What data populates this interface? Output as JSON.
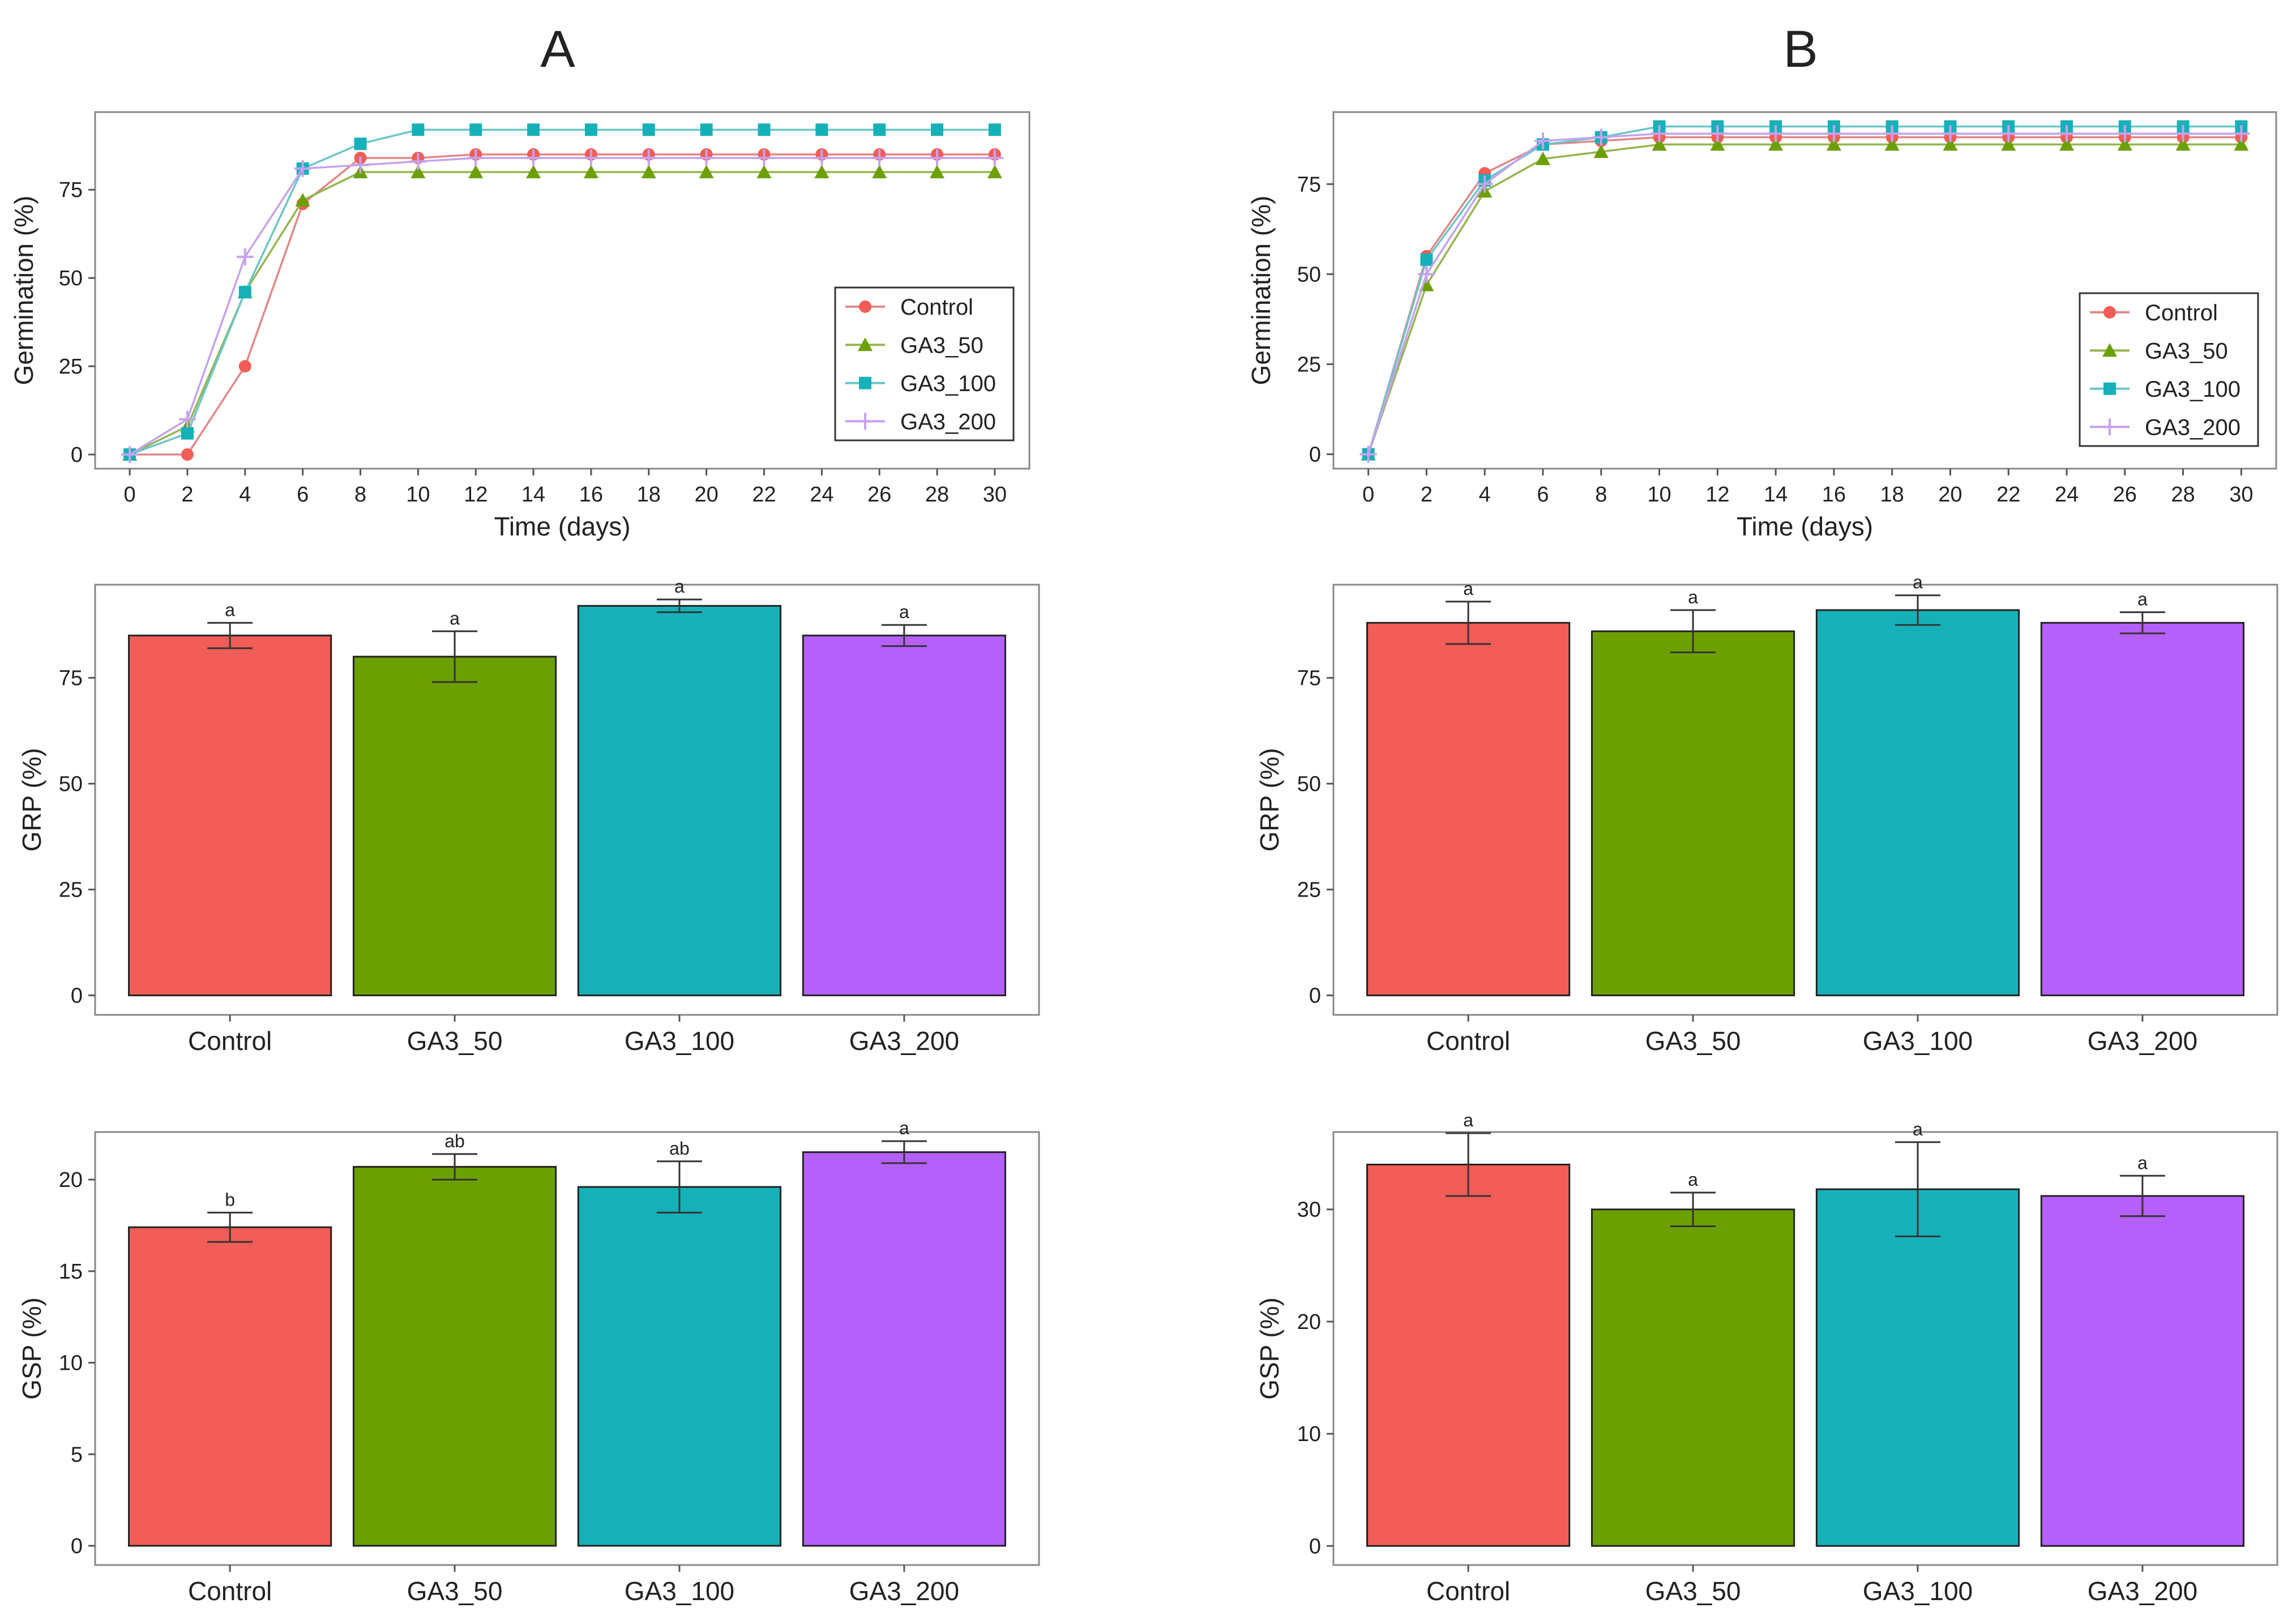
{
  "colors": {
    "Control": "#f25d57",
    "GA3_50": "#6ca000",
    "GA3_100": "#16b1b8",
    "GA3_200": "#b560fb"
  },
  "line_colors": {
    "Control": "#e08787",
    "GA3_50": "#94b550",
    "GA3_100": "#6cc5c9",
    "GA3_200": "#c6a2ee"
  },
  "chart_data": [
    {
      "id": "A-line",
      "panel": "A",
      "type": "line",
      "title": "A",
      "xlabel": "Time (days)",
      "ylabel": "Germination (%)",
      "x": [
        0,
        2,
        4,
        6,
        8,
        10,
        12,
        14,
        16,
        18,
        20,
        22,
        24,
        26,
        28,
        30
      ],
      "xlim": [
        -1.2,
        31.2
      ],
      "ylim": [
        -4,
        97
      ],
      "yticks": [
        0,
        25,
        50,
        75
      ],
      "legend_position": "right",
      "series": [
        {
          "name": "Control",
          "marker": "circle",
          "values": [
            0,
            0,
            25,
            71,
            84,
            84,
            85,
            85,
            85,
            85,
            85,
            85,
            85,
            85,
            85,
            85
          ]
        },
        {
          "name": "GA3_50",
          "marker": "triangle",
          "values": [
            0,
            8,
            46,
            72,
            80,
            80,
            80,
            80,
            80,
            80,
            80,
            80,
            80,
            80,
            80,
            80
          ]
        },
        {
          "name": "GA3_100",
          "marker": "square",
          "values": [
            0,
            6,
            46,
            81,
            88,
            92,
            92,
            92,
            92,
            92,
            92,
            92,
            92,
            92,
            92,
            92
          ]
        },
        {
          "name": "GA3_200",
          "marker": "plus",
          "values": [
            0,
            10,
            56,
            81,
            82,
            83,
            84,
            84,
            84,
            84,
            84,
            84,
            84,
            84,
            84,
            84
          ]
        }
      ]
    },
    {
      "id": "B-line",
      "panel": "B",
      "type": "line",
      "title": "B",
      "xlabel": "Time (days)",
      "ylabel": "Germination (%)",
      "x": [
        0,
        2,
        4,
        6,
        8,
        10,
        12,
        14,
        16,
        18,
        20,
        22,
        24,
        26,
        28,
        30
      ],
      "xlim": [
        -1.2,
        31.2
      ],
      "ylim": [
        -4,
        95
      ],
      "yticks": [
        0,
        25,
        50,
        75
      ],
      "legend_position": "right",
      "series": [
        {
          "name": "Control",
          "marker": "circle",
          "values": [
            0,
            55,
            78,
            86,
            87,
            88,
            88,
            88,
            88,
            88,
            88,
            88,
            88,
            88,
            88,
            88
          ]
        },
        {
          "name": "GA3_50",
          "marker": "triangle",
          "values": [
            0,
            47,
            73,
            82,
            84,
            86,
            86,
            86,
            86,
            86,
            86,
            86,
            86,
            86,
            86,
            86
          ]
        },
        {
          "name": "GA3_100",
          "marker": "square",
          "values": [
            0,
            54,
            76,
            86,
            88,
            91,
            91,
            91,
            91,
            91,
            91,
            91,
            91,
            91,
            91,
            91
          ]
        },
        {
          "name": "GA3_200",
          "marker": "plus",
          "values": [
            0,
            50,
            75,
            87,
            88,
            89,
            89,
            89,
            89,
            89,
            89,
            89,
            89,
            89,
            89,
            89
          ]
        }
      ]
    },
    {
      "id": "A-grp",
      "panel": "A",
      "type": "bar",
      "xlabel": "",
      "ylabel": "GRP (%)",
      "categories": [
        "Control",
        "GA3_50",
        "GA3_100",
        "GA3_200"
      ],
      "values": [
        85,
        80,
        92,
        85
      ],
      "errors": [
        3,
        6,
        1.5,
        2.5
      ],
      "significance": [
        "a",
        "a",
        "a",
        "a"
      ],
      "ylim": [
        -4.6,
        97
      ],
      "yticks": [
        0,
        25,
        50,
        75
      ]
    },
    {
      "id": "B-grp",
      "panel": "B",
      "type": "bar",
      "xlabel": "",
      "ylabel": "GRP (%)",
      "categories": [
        "Control",
        "GA3_50",
        "GA3_100",
        "GA3_200"
      ],
      "values": [
        88,
        86,
        91,
        88
      ],
      "errors": [
        5,
        5,
        3.5,
        2.5
      ],
      "significance": [
        "a",
        "a",
        "a",
        "a"
      ],
      "ylim": [
        -4.6,
        97
      ],
      "yticks": [
        0,
        25,
        50,
        75
      ]
    },
    {
      "id": "A-gsp",
      "panel": "A",
      "type": "bar",
      "xlabel": "",
      "ylabel": "GSP (%)",
      "categories": [
        "Control",
        "GA3_50",
        "GA3_100",
        "GA3_200"
      ],
      "values": [
        17.4,
        20.7,
        19.6,
        21.5
      ],
      "errors": [
        0.8,
        0.7,
        1.4,
        0.6
      ],
      "significance": [
        "b",
        "ab",
        "ab",
        "a"
      ],
      "ylim": [
        -1.05,
        22.6
      ],
      "yticks": [
        0,
        5,
        10,
        15,
        20
      ]
    },
    {
      "id": "B-gsp",
      "panel": "B",
      "type": "bar",
      "xlabel": "",
      "ylabel": "GSP (%)",
      "categories": [
        "Control",
        "GA3_50",
        "GA3_100",
        "GA3_200"
      ],
      "values": [
        34,
        30,
        31.8,
        31.2
      ],
      "errors": [
        2.8,
        1.5,
        4.2,
        1.8
      ],
      "significance": [
        "a",
        "a",
        "a",
        "a"
      ],
      "ylim": [
        -1.7,
        36.9
      ],
      "yticks": [
        0,
        10,
        20,
        30
      ]
    }
  ]
}
